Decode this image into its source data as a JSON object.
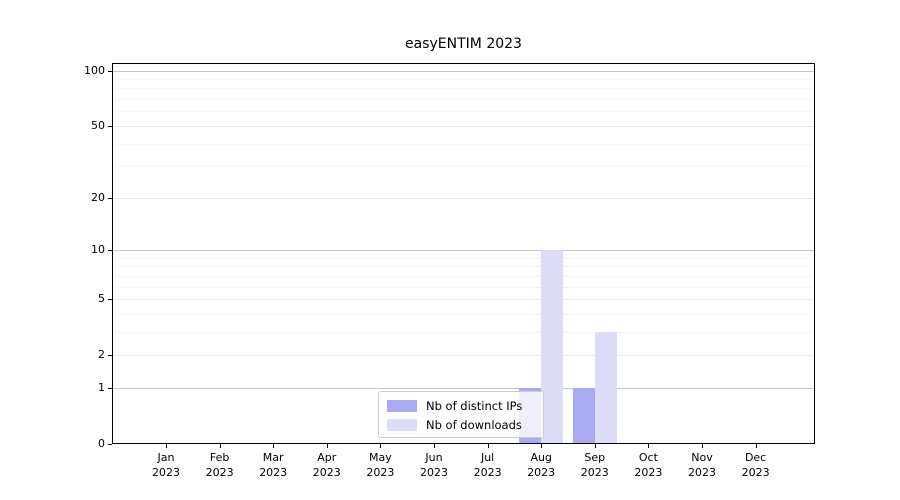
{
  "title": "easyENTIM 2023",
  "chart_data": {
    "type": "bar",
    "title": "easyENTIM 2023",
    "categories": [
      "Jan",
      "Feb",
      "Mar",
      "Apr",
      "May",
      "Jun",
      "Jul",
      "Aug",
      "Sep",
      "Oct",
      "Nov",
      "Dec"
    ],
    "category_year": "2023",
    "series": [
      {
        "name": "Nb of distinct IPs",
        "color": "#aaaaf2",
        "values": [
          0,
          0,
          0,
          0,
          0,
          0,
          0,
          1,
          1,
          0,
          0,
          0
        ]
      },
      {
        "name": "Nb of downloads",
        "color": "#dcdcf8",
        "values": [
          0,
          0,
          0,
          0,
          0,
          0,
          0,
          10,
          3,
          0,
          0,
          0
        ]
      }
    ],
    "xlabel": "",
    "ylabel": "",
    "yscale": "log1p",
    "ylim": [
      0,
      110
    ],
    "ytick_values": [
      0,
      1,
      2,
      5,
      10,
      20,
      50,
      100
    ],
    "ytick_labels": [
      "0",
      "1",
      "2",
      "5",
      "10",
      "20",
      "50",
      "100"
    ],
    "decade_gridlines": [
      1,
      10,
      100
    ],
    "labeled_gridlines": [
      2,
      5,
      20,
      50
    ],
    "minor_gridlines": [
      3,
      4,
      6,
      7,
      8,
      9,
      30,
      40,
      60,
      70,
      80,
      90
    ],
    "grid": true,
    "legend_position": "lower center inside"
  },
  "legend": {
    "items": [
      {
        "label": "Nb of distinct IPs",
        "color": "#aaaaf2"
      },
      {
        "label": "Nb of downloads",
        "color": "#dcdcf8"
      }
    ]
  },
  "colors": {
    "background": "#ffffff",
    "spine": "#000000",
    "text": "#000000",
    "grid_decade": "#c6c6c6",
    "grid_labeled": "#e8e8e8",
    "grid_minor": "#f2f2f2",
    "legend_border": "#cccccc"
  }
}
